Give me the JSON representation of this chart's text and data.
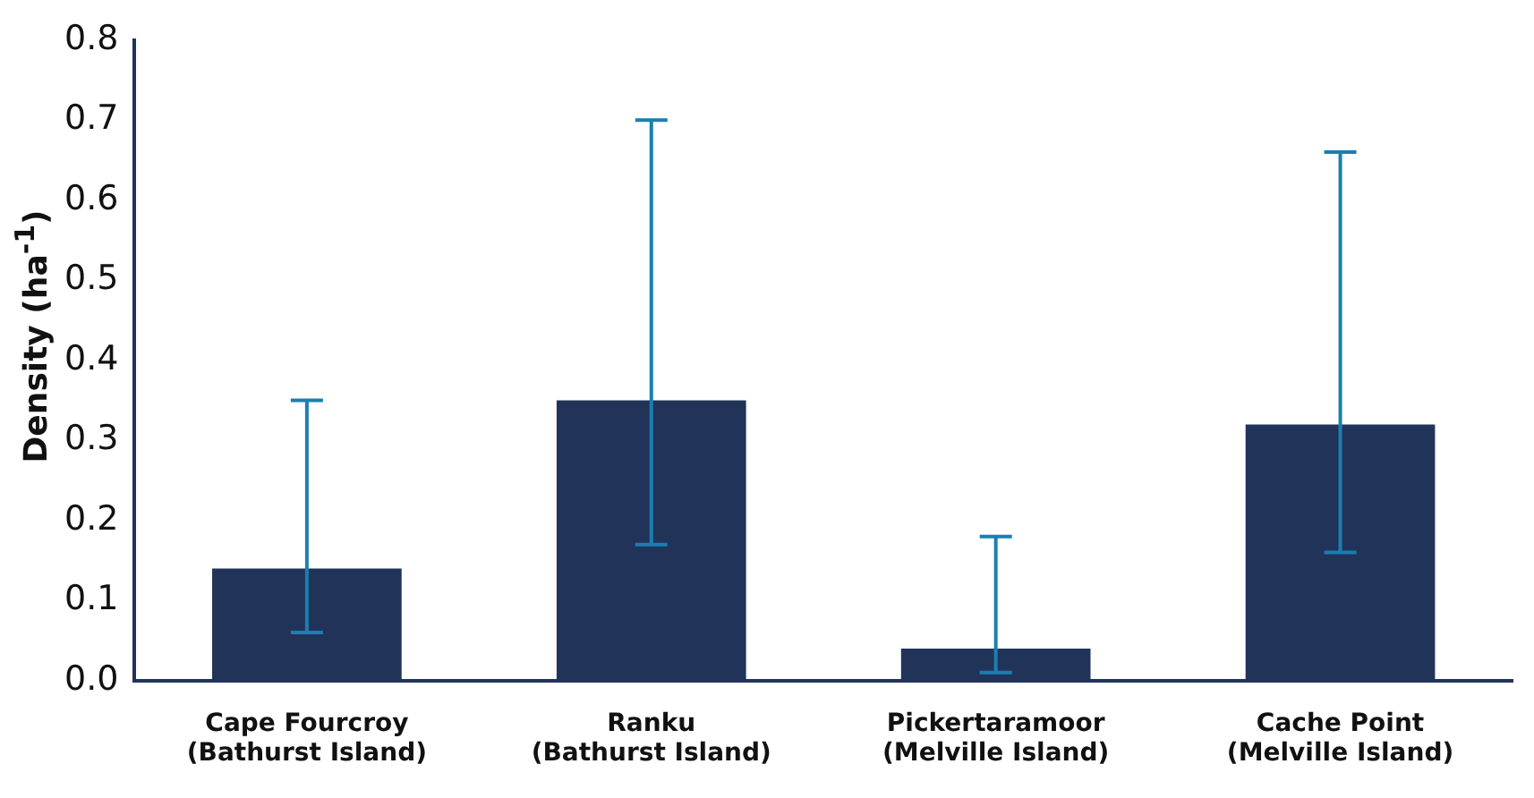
{
  "chart_data": {
    "type": "bar",
    "ylabel": "Density (ha$^{-1}$)",
    "categories": [
      "Cape Fourcroy\n(Bathurst Island)",
      "Ranku\n(Bathurst Island)",
      "Pickertaramoor\n(Melville Island)",
      "Cache Point\n(Melville Island)"
    ],
    "values": [
      0.14,
      0.35,
      0.04,
      0.32
    ],
    "errors": [
      [
        0.06,
        0.35
      ],
      [
        0.17,
        0.7
      ],
      [
        0.01,
        0.18
      ],
      [
        0.16,
        0.66
      ]
    ],
    "color": "#22335a",
    "ylim": [
      0,
      0.8
    ],
    "yticks": [
      {
        "value": 0,
        "label": "0.0"
      },
      0.1,
      0.2,
      0.3,
      0.4,
      0.5,
      0.6,
      0.7,
      0.8
    ],
    "grid": false,
    "legend": false
  }
}
